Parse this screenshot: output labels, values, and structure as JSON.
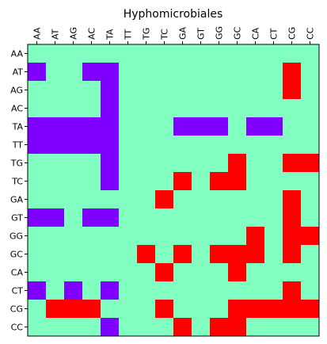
{
  "chart_data": {
    "type": "heatmap",
    "title": "Hyphomicrobiales",
    "xlabel": "",
    "ylabel": "",
    "x_categories": [
      "AA",
      "AT",
      "AG",
      "AC",
      "TA",
      "TT",
      "TG",
      "TC",
      "GA",
      "GT",
      "GG",
      "GC",
      "CA",
      "CT",
      "CG",
      "CC"
    ],
    "y_categories": [
      "AA",
      "AT",
      "AG",
      "AC",
      "TA",
      "TT",
      "TG",
      "TC",
      "GA",
      "GT",
      "GG",
      "GC",
      "CA",
      "CT",
      "CG",
      "CC"
    ],
    "x_axis_position": "top",
    "value_levels": [
      -1,
      0,
      1
    ],
    "colors": {
      "-1": "#7f00ff",
      "0": "#80ffc0",
      "1": "#ff0000"
    },
    "grid": false,
    "matrix": [
      [
        0,
        0,
        0,
        0,
        0,
        0,
        0,
        0,
        0,
        0,
        0,
        0,
        0,
        0,
        0,
        0
      ],
      [
        -1,
        0,
        0,
        -1,
        -1,
        0,
        0,
        0,
        0,
        0,
        0,
        0,
        0,
        0,
        1,
        0
      ],
      [
        0,
        0,
        0,
        0,
        -1,
        0,
        0,
        0,
        0,
        0,
        0,
        0,
        0,
        0,
        1,
        0
      ],
      [
        0,
        0,
        0,
        0,
        -1,
        0,
        0,
        0,
        0,
        0,
        0,
        0,
        0,
        0,
        0,
        0
      ],
      [
        -1,
        -1,
        -1,
        -1,
        -1,
        0,
        0,
        0,
        -1,
        -1,
        -1,
        0,
        -1,
        -1,
        0,
        0
      ],
      [
        -1,
        -1,
        -1,
        -1,
        -1,
        0,
        0,
        0,
        0,
        0,
        0,
        0,
        0,
        0,
        0,
        0
      ],
      [
        0,
        0,
        0,
        0,
        -1,
        0,
        0,
        0,
        0,
        0,
        0,
        1,
        0,
        0,
        1,
        1
      ],
      [
        0,
        0,
        0,
        0,
        -1,
        0,
        0,
        0,
        1,
        0,
        1,
        1,
        0,
        0,
        0,
        0
      ],
      [
        0,
        0,
        0,
        0,
        0,
        0,
        0,
        1,
        0,
        0,
        0,
        0,
        0,
        0,
        1,
        0
      ],
      [
        -1,
        -1,
        0,
        -1,
        -1,
        0,
        0,
        0,
        0,
        0,
        0,
        0,
        0,
        0,
        1,
        0
      ],
      [
        0,
        0,
        0,
        0,
        0,
        0,
        0,
        0,
        0,
        0,
        0,
        0,
        1,
        0,
        1,
        1
      ],
      [
        0,
        0,
        0,
        0,
        0,
        0,
        1,
        0,
        1,
        0,
        1,
        1,
        1,
        0,
        1,
        0
      ],
      [
        0,
        0,
        0,
        0,
        0,
        0,
        0,
        1,
        0,
        0,
        0,
        1,
        0,
        0,
        0,
        0
      ],
      [
        -1,
        0,
        -1,
        0,
        -1,
        0,
        0,
        0,
        0,
        0,
        0,
        0,
        0,
        0,
        1,
        0
      ],
      [
        0,
        1,
        1,
        1,
        0,
        0,
        0,
        1,
        0,
        0,
        0,
        1,
        1,
        1,
        1,
        1
      ],
      [
        0,
        0,
        0,
        0,
        -1,
        0,
        0,
        0,
        1,
        0,
        1,
        1,
        0,
        0,
        0,
        0
      ]
    ]
  }
}
